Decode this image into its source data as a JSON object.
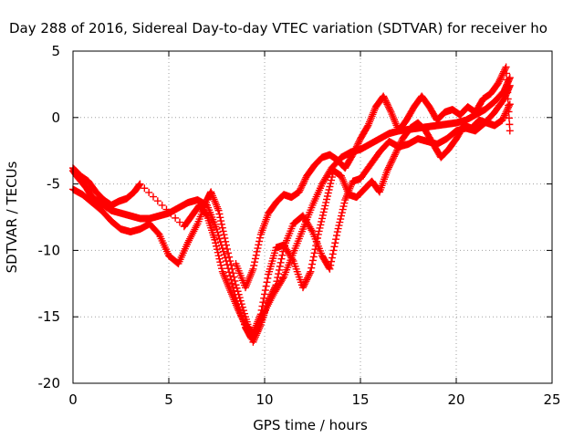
{
  "chart_data": {
    "type": "scatter",
    "title": "Day 288 of 2016, Sidereal Day-to-day VTEC variation (SDTVAR) for receiver ho",
    "xlabel": "GPS time / hours",
    "ylabel": "SDTVAR / TECUs",
    "xlim": [
      0,
      25
    ],
    "ylim": [
      -20,
      5
    ],
    "xticks": [
      0,
      5,
      10,
      15,
      20,
      25
    ],
    "yticks": [
      -20,
      -15,
      -10,
      -5,
      0,
      5
    ],
    "grid": true,
    "marker": "plus",
    "color": "#ff0000",
    "series": [
      {
        "values": [
          [
            0.0,
            -4.0
          ],
          [
            0.3,
            -4.6
          ],
          [
            0.7,
            -5.3
          ],
          [
            1.0,
            -6.0
          ],
          [
            1.5,
            -6.5
          ],
          [
            2.0,
            -7.0
          ],
          [
            2.5,
            -7.2
          ],
          [
            3.0,
            -7.4
          ],
          [
            3.5,
            -7.6
          ],
          [
            4.0,
            -7.6
          ],
          [
            4.5,
            -7.4
          ],
          [
            5.0,
            -7.2
          ],
          [
            5.5,
            -6.8
          ],
          [
            6.0,
            -6.4
          ],
          [
            6.5,
            -6.2
          ],
          [
            7.0,
            -6.6
          ],
          [
            7.5,
            -8.4
          ],
          [
            8.0,
            -10.8
          ],
          [
            8.5,
            -13.6
          ],
          [
            9.0,
            -15.8
          ],
          [
            9.3,
            -16.6
          ],
          [
            9.6,
            -16.0
          ],
          [
            10.0,
            -14.6
          ],
          [
            10.5,
            -13.2
          ],
          [
            11.0,
            -12.0
          ],
          [
            11.5,
            -10.2
          ],
          [
            12.0,
            -8.4
          ],
          [
            12.5,
            -6.6
          ],
          [
            13.0,
            -5.0
          ],
          [
            13.5,
            -3.8
          ],
          [
            14.0,
            -3.0
          ],
          [
            14.5,
            -2.6
          ],
          [
            15.0,
            -2.4
          ],
          [
            15.5,
            -2.0
          ],
          [
            16.0,
            -1.6
          ],
          [
            16.5,
            -1.2
          ],
          [
            17.0,
            -1.0
          ],
          [
            17.5,
            -0.9
          ],
          [
            18.0,
            -0.8
          ],
          [
            18.5,
            -0.7
          ],
          [
            19.0,
            -0.6
          ],
          [
            19.5,
            -0.5
          ],
          [
            20.0,
            -0.4
          ],
          [
            20.5,
            -0.2
          ],
          [
            21.0,
            0.2
          ],
          [
            21.5,
            0.6
          ],
          [
            22.0,
            1.2
          ],
          [
            22.5,
            2.0
          ],
          [
            22.8,
            3.0
          ]
        ]
      },
      {
        "values": [
          [
            0.0,
            -5.4
          ],
          [
            0.5,
            -5.8
          ],
          [
            1.0,
            -6.4
          ],
          [
            1.5,
            -7.0
          ],
          [
            2.0,
            -7.8
          ],
          [
            2.5,
            -8.4
          ],
          [
            3.0,
            -8.6
          ],
          [
            3.5,
            -8.4
          ],
          [
            4.0,
            -8.0
          ],
          [
            4.5,
            -8.8
          ],
          [
            5.0,
            -10.4
          ],
          [
            5.5,
            -11.0
          ],
          [
            6.0,
            -9.4
          ],
          [
            6.5,
            -8.0
          ],
          [
            7.0,
            -6.2
          ],
          [
            7.2,
            -5.6
          ],
          [
            7.6,
            -7.0
          ],
          [
            8.0,
            -9.6
          ],
          [
            8.5,
            -12.6
          ],
          [
            9.0,
            -15.0
          ],
          [
            9.4,
            -16.9
          ],
          [
            9.8,
            -15.6
          ],
          [
            10.2,
            -13.8
          ],
          [
            10.6,
            -12.6
          ],
          [
            11.0,
            -9.8
          ],
          [
            11.5,
            -8.0
          ],
          [
            12.0,
            -7.4
          ],
          [
            12.5,
            -8.6
          ],
          [
            13.0,
            -10.4
          ],
          [
            13.4,
            -11.4
          ],
          [
            13.8,
            -8.6
          ],
          [
            14.2,
            -6.2
          ],
          [
            14.6,
            -4.8
          ],
          [
            15.0,
            -4.6
          ],
          [
            15.5,
            -3.6
          ],
          [
            16.0,
            -2.6
          ],
          [
            16.5,
            -1.8
          ],
          [
            17.0,
            -2.2
          ],
          [
            17.5,
            -2.0
          ],
          [
            18.0,
            -1.6
          ],
          [
            18.5,
            -1.8
          ],
          [
            19.0,
            -2.0
          ],
          [
            19.5,
            -1.6
          ],
          [
            20.0,
            -1.0
          ],
          [
            20.5,
            -0.8
          ],
          [
            21.0,
            -1.0
          ],
          [
            21.5,
            -0.4
          ],
          [
            22.0,
            0.4
          ],
          [
            22.5,
            1.4
          ],
          [
            22.8,
            2.4
          ]
        ]
      },
      {
        "values": [
          [
            0.0,
            -3.8
          ],
          [
            0.4,
            -4.4
          ],
          [
            0.8,
            -4.8
          ],
          [
            1.2,
            -5.6
          ],
          [
            1.6,
            -6.2
          ],
          [
            2.0,
            -6.6
          ],
          [
            2.4,
            -6.3
          ],
          [
            2.8,
            -6.1
          ],
          [
            3.2,
            -5.6
          ],
          [
            3.5,
            -5.0
          ],
          [
            5.8,
            -8.2
          ],
          [
            6.2,
            -7.4
          ],
          [
            6.6,
            -6.6
          ],
          [
            7.0,
            -7.4
          ],
          [
            7.4,
            -9.2
          ],
          [
            7.8,
            -11.6
          ],
          [
            8.2,
            -13.0
          ],
          [
            8.6,
            -14.4
          ],
          [
            9.0,
            -15.6
          ],
          [
            9.4,
            -16.2
          ],
          [
            9.8,
            -14.8
          ],
          [
            10.2,
            -11.8
          ],
          [
            10.6,
            -9.8
          ],
          [
            11.0,
            -9.6
          ],
          [
            11.5,
            -10.8
          ],
          [
            12.0,
            -12.8
          ],
          [
            12.4,
            -11.6
          ],
          [
            12.8,
            -8.8
          ],
          [
            13.2,
            -6.4
          ],
          [
            13.6,
            -4.0
          ],
          [
            14.0,
            -4.4
          ],
          [
            14.4,
            -5.8
          ],
          [
            14.8,
            -6.0
          ],
          [
            15.2,
            -5.4
          ],
          [
            15.6,
            -4.8
          ],
          [
            16.0,
            -5.6
          ],
          [
            16.4,
            -4.0
          ],
          [
            16.8,
            -2.8
          ],
          [
            17.2,
            -1.6
          ],
          [
            17.6,
            -0.8
          ],
          [
            18.0,
            -0.4
          ],
          [
            18.4,
            -1.0
          ],
          [
            18.8,
            -2.0
          ],
          [
            19.2,
            -3.0
          ],
          [
            19.6,
            -2.4
          ],
          [
            20.0,
            -1.6
          ],
          [
            20.4,
            -0.6
          ],
          [
            20.8,
            -0.8
          ],
          [
            21.2,
            -0.2
          ],
          [
            21.6,
            -0.4
          ],
          [
            22.0,
            -0.6
          ],
          [
            22.4,
            -0.2
          ],
          [
            22.8,
            1.0
          ]
        ]
      },
      {
        "values": [
          [
            8.5,
            -11.0
          ],
          [
            9.0,
            -12.8
          ],
          [
            9.4,
            -11.4
          ],
          [
            9.8,
            -8.8
          ],
          [
            10.2,
            -7.2
          ],
          [
            10.6,
            -6.4
          ],
          [
            11.0,
            -5.8
          ],
          [
            11.4,
            -6.0
          ],
          [
            11.8,
            -5.6
          ],
          [
            12.2,
            -4.4
          ],
          [
            12.6,
            -3.6
          ],
          [
            13.0,
            -3.0
          ],
          [
            13.4,
            -2.8
          ],
          [
            13.8,
            -3.2
          ],
          [
            14.2,
            -3.8
          ],
          [
            14.6,
            -2.8
          ],
          [
            15.0,
            -1.6
          ],
          [
            15.4,
            -0.6
          ],
          [
            15.8,
            0.8
          ],
          [
            16.2,
            1.6
          ],
          [
            16.6,
            0.4
          ],
          [
            17.0,
            -1.0
          ],
          [
            17.4,
            -0.2
          ],
          [
            17.8,
            0.8
          ],
          [
            18.2,
            1.6
          ],
          [
            18.6,
            0.8
          ],
          [
            19.0,
            -0.2
          ],
          [
            19.4,
            0.4
          ],
          [
            19.8,
            0.6
          ],
          [
            20.2,
            0.2
          ],
          [
            20.6,
            0.8
          ],
          [
            21.0,
            0.4
          ],
          [
            21.4,
            1.4
          ],
          [
            21.8,
            1.8
          ],
          [
            22.2,
            2.6
          ],
          [
            22.6,
            3.8
          ],
          [
            22.8,
            -1.0
          ]
        ]
      }
    ]
  }
}
